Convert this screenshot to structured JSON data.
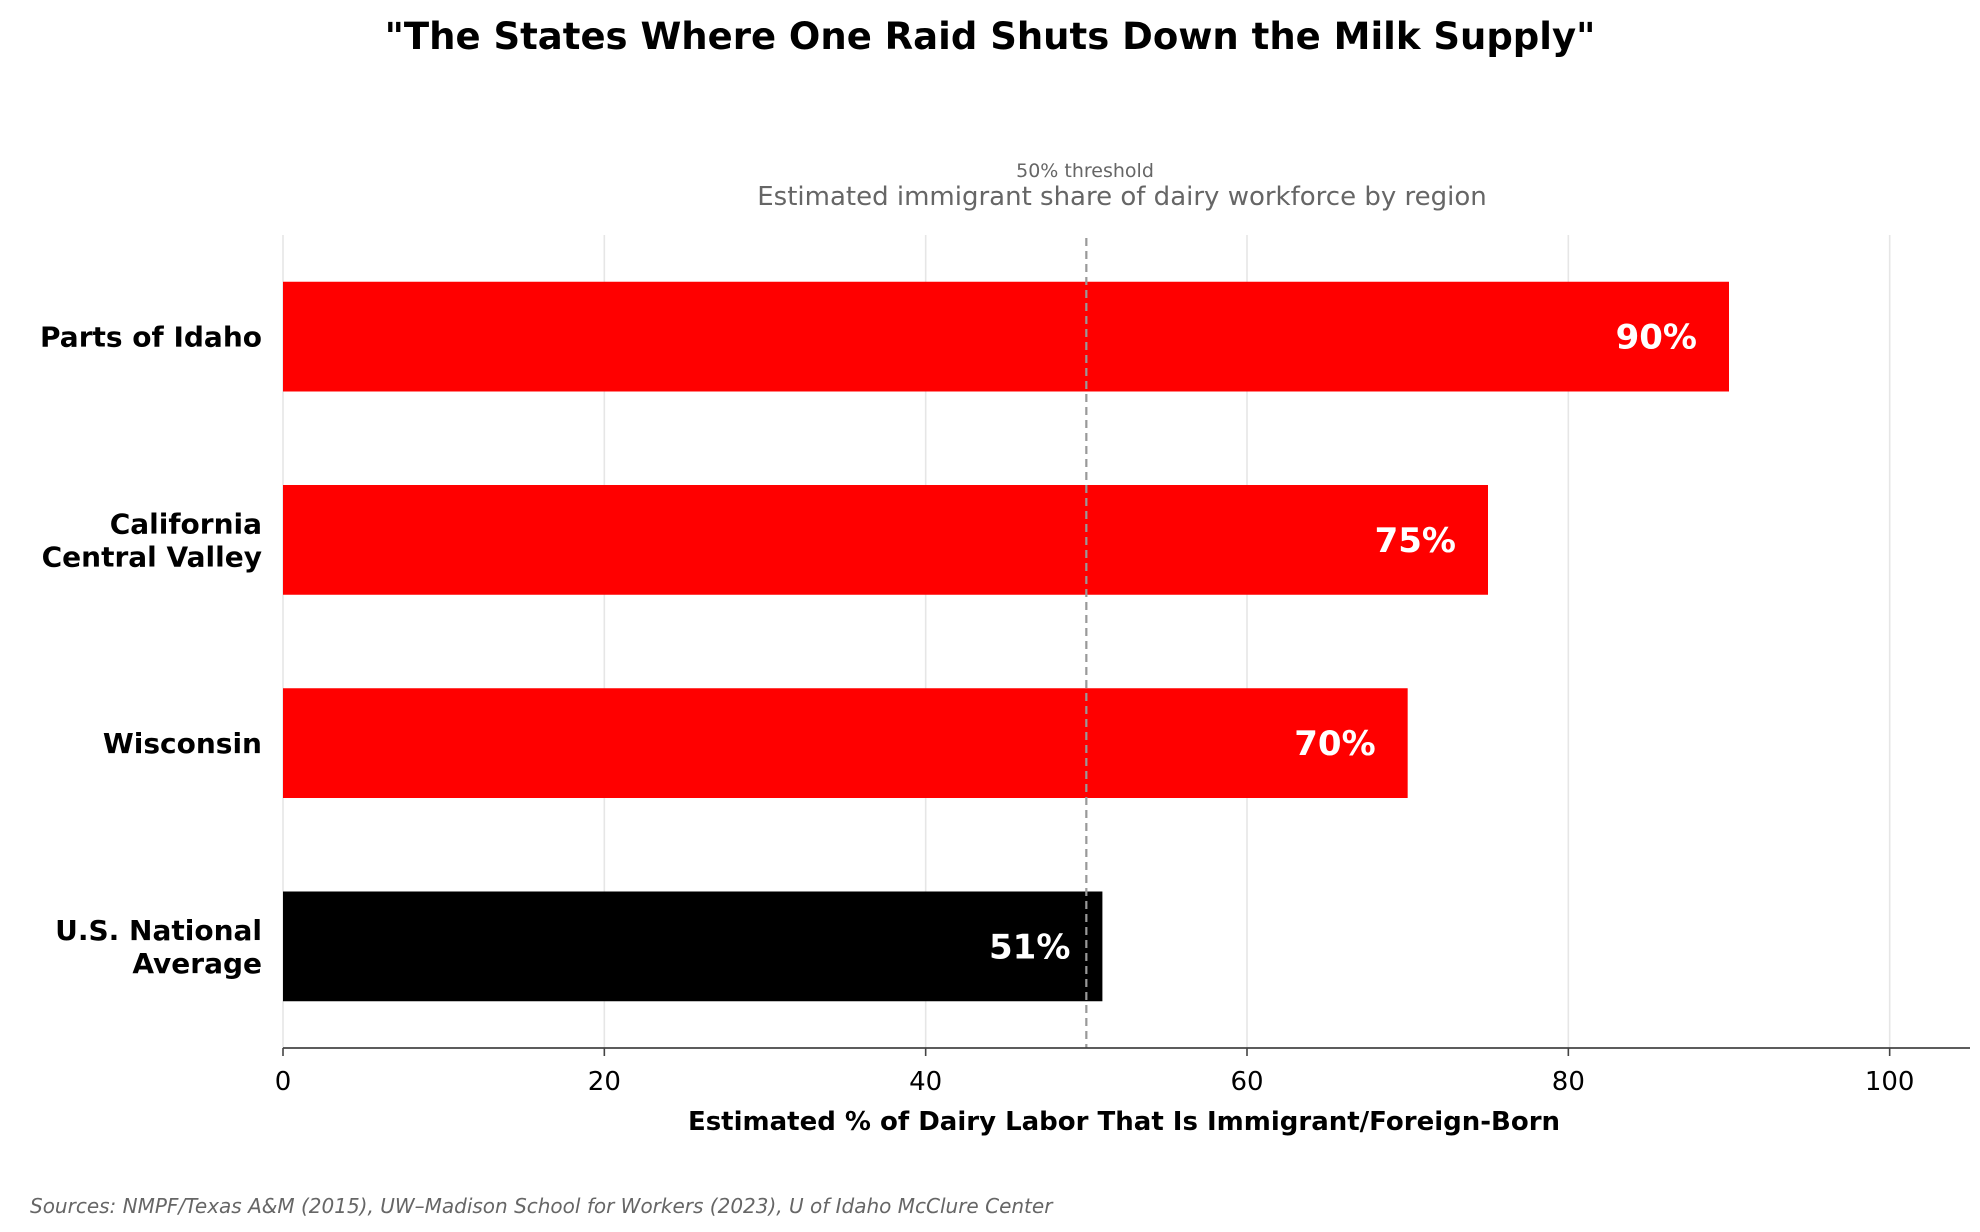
{
  "chart_data": {
    "type": "bar",
    "orientation": "horizontal",
    "title": "\"The States Where One Raid Shuts Down the Milk Supply\"",
    "subtitle": "Estimated immigrant share of dairy workforce by region",
    "categories": [
      [
        "Parts of Idaho"
      ],
      [
        "California",
        "Central Valley"
      ],
      [
        "Wisconsin"
      ],
      [
        "U.S. National",
        "Average"
      ]
    ],
    "values": [
      90,
      75,
      70,
      51
    ],
    "value_labels": [
      "90%",
      "75%",
      "70%",
      "51%"
    ],
    "bar_colors": [
      "#ff0000",
      "#ff0000",
      "#ff0000",
      "#000000"
    ],
    "xlabel": "Estimated % of Dairy Labor That Is Immigrant/Foreign-Born",
    "ylabel": "",
    "xlim": [
      0,
      105
    ],
    "xticks": [
      0,
      20,
      40,
      60,
      80,
      100
    ],
    "grid": "vertical",
    "reference_line": {
      "value": 50,
      "label": "50% threshold",
      "style": "dashed",
      "color": "#999999"
    },
    "source": "Sources: NMPF/Texas A&M (2015), UW–Madison School for Workers (2023), U of Idaho McClure Center"
  }
}
